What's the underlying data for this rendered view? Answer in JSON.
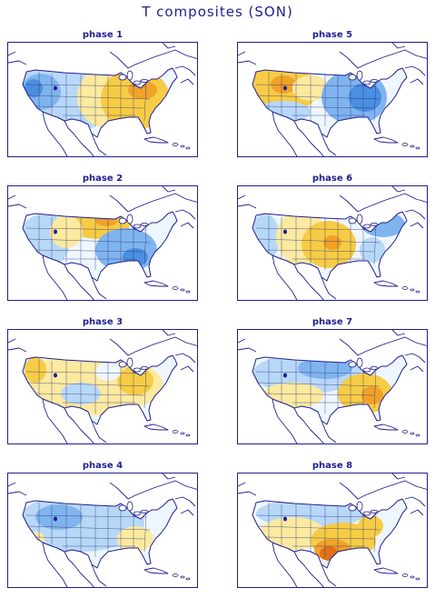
{
  "title": "T composites (SON)",
  "colors": {
    "frame": "#1f1f8f",
    "cold_strong": "#4a8fe0",
    "cold": "#7fb4ef",
    "cool": "#b8d8f8",
    "neutral": "#eef6ff",
    "mild": "#fbeaa0",
    "warm": "#f6cc45",
    "hot": "#f0a22a",
    "hot_strong": "#e27016"
  },
  "panels": [
    {
      "label": "phase 1",
      "pattern": "east-warm-west-cool"
    },
    {
      "label": "phase 5",
      "pattern": "west-warm-east-cool"
    },
    {
      "label": "phase 2",
      "pattern": "north-central-warm-southeast-cool"
    },
    {
      "label": "phase 6",
      "pattern": "central-warm-coasts-cool"
    },
    {
      "label": "phase 3",
      "pattern": "mostly-mild-warm"
    },
    {
      "label": "phase 7",
      "pattern": "north-cool-southeast-warm"
    },
    {
      "label": "phase 4",
      "pattern": "mostly-cool-southeast-mild"
    },
    {
      "label": "phase 8",
      "pattern": "south-warm-north-cool"
    }
  ]
}
